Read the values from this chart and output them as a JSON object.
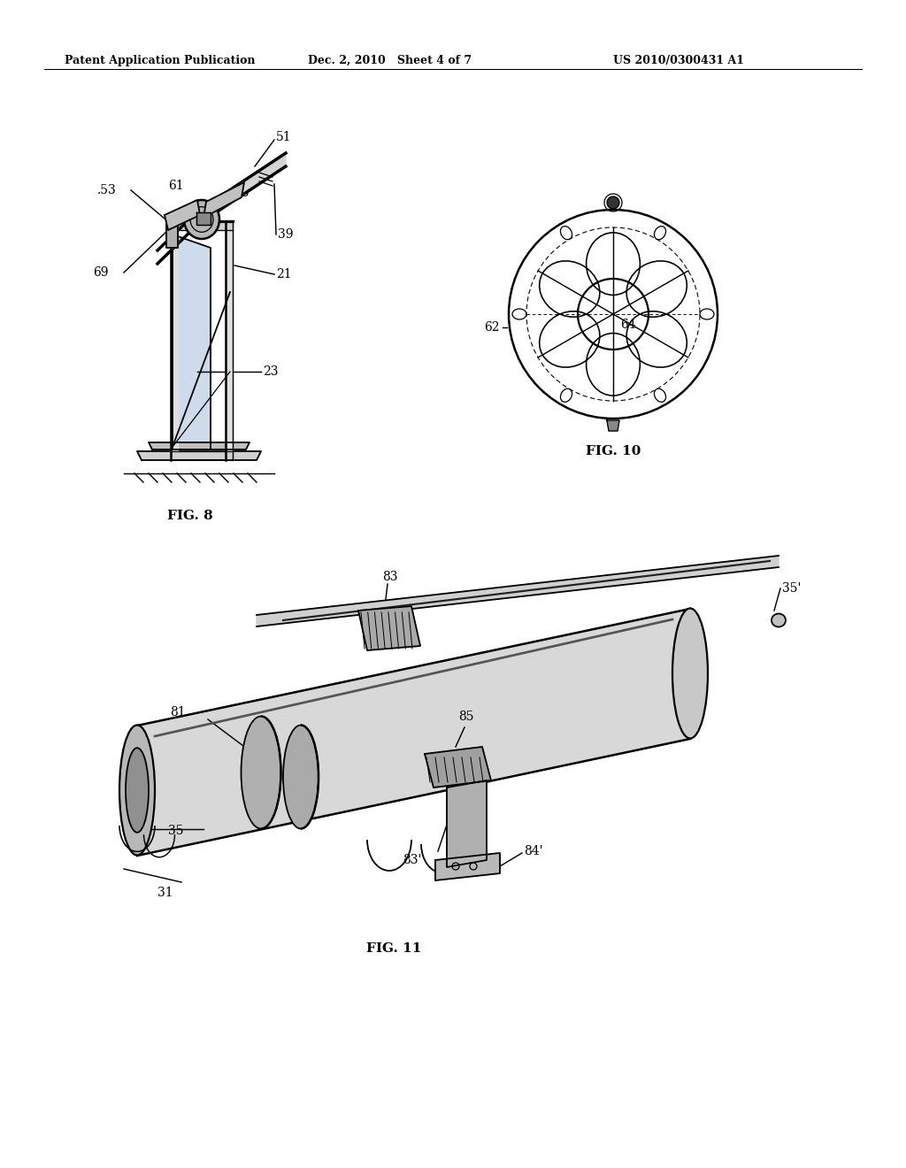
{
  "bg_color": "#ffffff",
  "line_color": "#000000",
  "header_left": "Patent Application Publication",
  "header_mid": "Dec. 2, 2010   Sheet 4 of 7",
  "header_right": "US 2010/0300431 A1",
  "fig8_label": "FIG. 8",
  "fig10_label": "FIG. 10",
  "fig11_label": "FIG. 11"
}
